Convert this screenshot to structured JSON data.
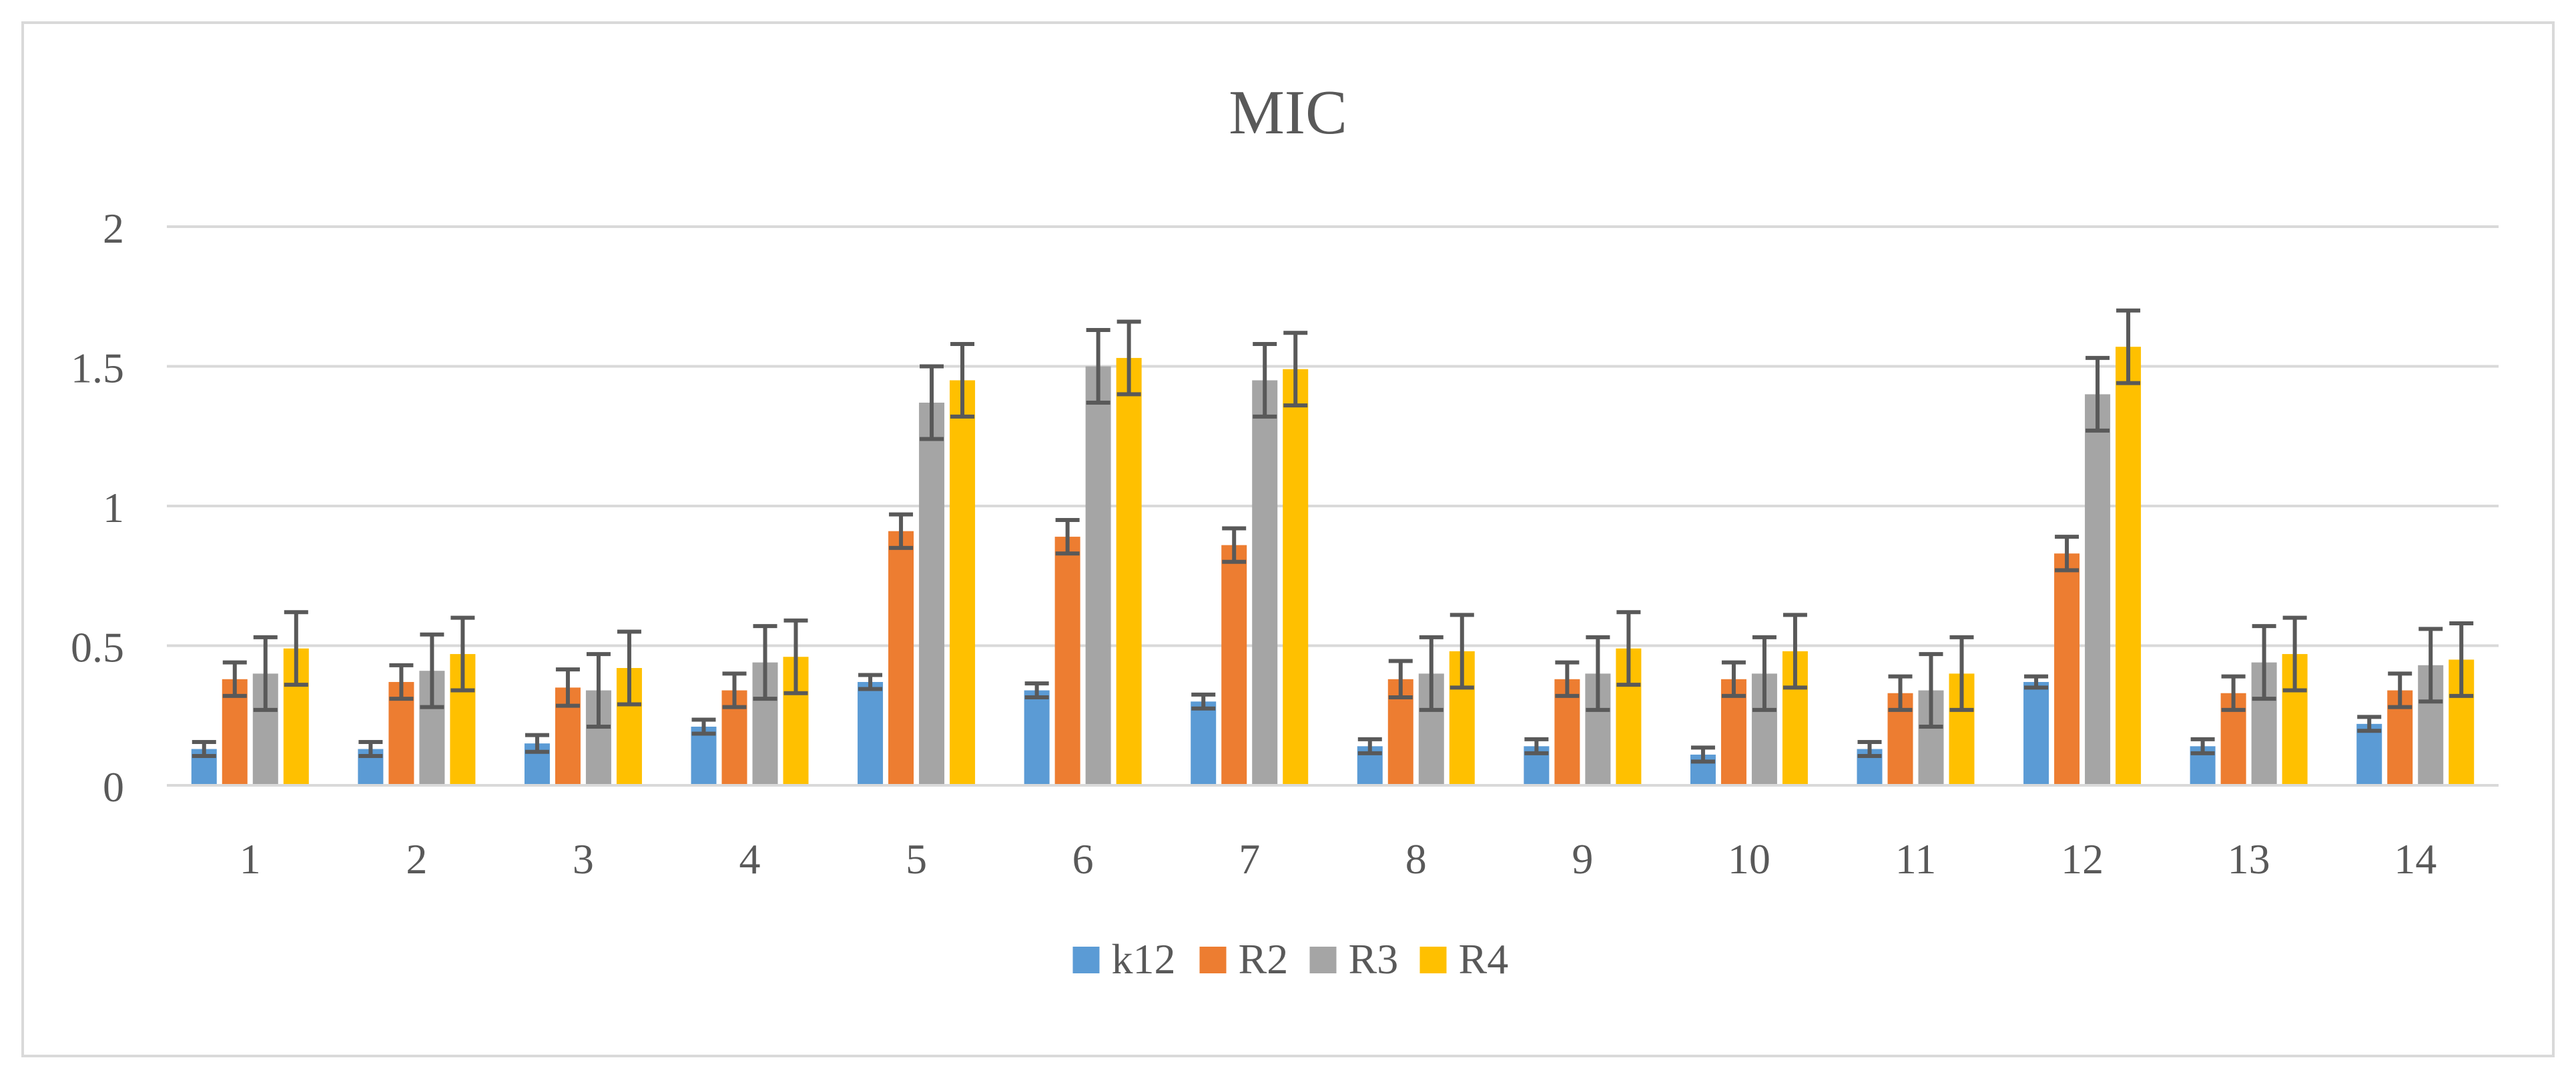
{
  "chart_data": {
    "type": "bar",
    "title": "MIC",
    "xlabel": "",
    "ylabel": "",
    "ylim": [
      0,
      2
    ],
    "yticks": [
      "0",
      "0.5",
      "1",
      "1.5",
      "2"
    ],
    "ytick_values": [
      0,
      0.5,
      1,
      1.5,
      2
    ],
    "grid": true,
    "legend_position": "bottom-center",
    "categories": [
      "1",
      "2",
      "3",
      "4",
      "5",
      "6",
      "7",
      "8",
      "9",
      "10",
      "11",
      "12",
      "13",
      "14"
    ],
    "series": [
      {
        "name": "k12",
        "color": "#5B9BD5",
        "values": [
          0.13,
          0.13,
          0.15,
          0.21,
          0.37,
          0.34,
          0.3,
          0.14,
          0.14,
          0.11,
          0.13,
          0.37,
          0.14,
          0.22
        ],
        "errors": [
          0.025,
          0.025,
          0.03,
          0.025,
          0.025,
          0.025,
          0.025,
          0.025,
          0.025,
          0.025,
          0.025,
          0.02,
          0.025,
          0.025
        ]
      },
      {
        "name": "R2",
        "color": "#ED7D31",
        "values": [
          0.38,
          0.37,
          0.35,
          0.34,
          0.91,
          0.89,
          0.86,
          0.38,
          0.38,
          0.38,
          0.33,
          0.83,
          0.33,
          0.34
        ],
        "errors": [
          0.06,
          0.06,
          0.065,
          0.06,
          0.06,
          0.06,
          0.06,
          0.065,
          0.06,
          0.06,
          0.06,
          0.06,
          0.06,
          0.06
        ]
      },
      {
        "name": "R3",
        "color": "#A5A5A5",
        "values": [
          0.4,
          0.41,
          0.34,
          0.44,
          1.37,
          1.5,
          1.45,
          0.4,
          0.4,
          0.4,
          0.34,
          1.4,
          0.44,
          0.43
        ],
        "errors": [
          0.13,
          0.13,
          0.13,
          0.13,
          0.13,
          0.13,
          0.13,
          0.13,
          0.13,
          0.13,
          0.13,
          0.13,
          0.13,
          0.13
        ]
      },
      {
        "name": "R4",
        "color": "#FFC000",
        "values": [
          0.49,
          0.47,
          0.42,
          0.46,
          1.45,
          1.53,
          1.49,
          0.48,
          0.49,
          0.48,
          0.4,
          1.57,
          0.47,
          0.45
        ],
        "errors": [
          0.13,
          0.13,
          0.13,
          0.13,
          0.13,
          0.13,
          0.13,
          0.13,
          0.13,
          0.13,
          0.13,
          0.13,
          0.13,
          0.13
        ]
      }
    ]
  }
}
